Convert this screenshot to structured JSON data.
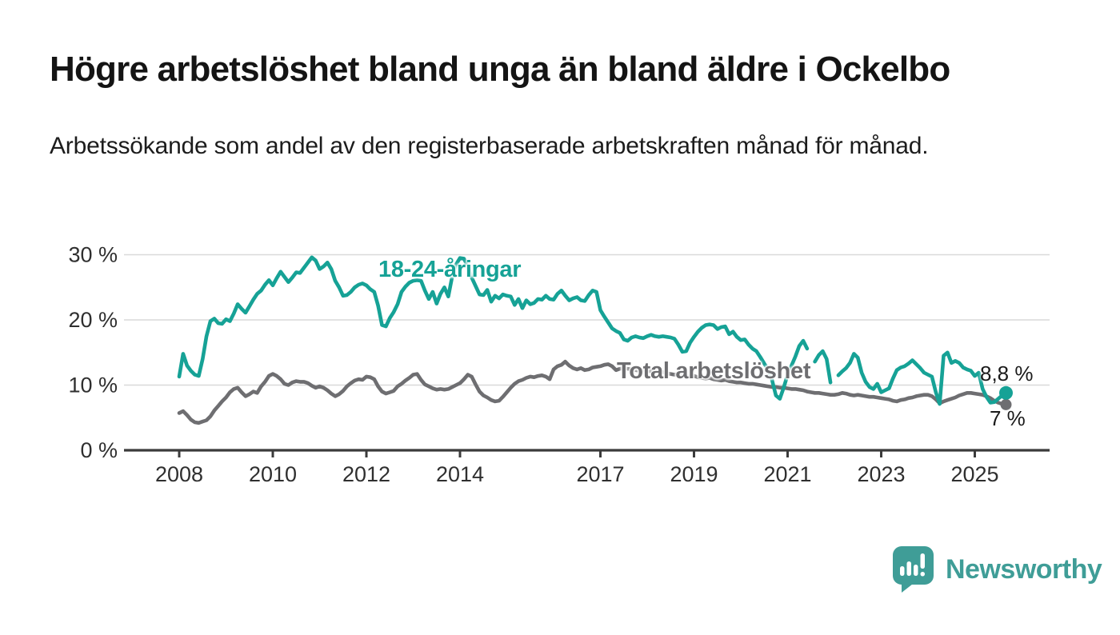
{
  "header": {
    "title": "Högre arbetslöshet bland unga än bland äldre i Ockelbo",
    "subtitle": "Arbetssökande som andel av den registerbaserade arbetskraften månad för månad."
  },
  "colors": {
    "young_line": "#16a296",
    "total_line": "#6e6e71",
    "grid": "#d9d9d9",
    "axis": "#3b3b3b",
    "axis_text": "#2f2f2f",
    "value_label_text": "#1a1a1a",
    "logo_teal": "#3f9d97",
    "title_text": "#141414"
  },
  "logo": {
    "text": "Newsworthy"
  },
  "chart_data": {
    "type": "line",
    "title": "Högre arbetslöshet bland unga än bland äldre i Ockelbo",
    "subtitle": "Arbetssökande som andel av den registerbaserade arbetskraften månad för månad.",
    "unit": "%",
    "x_start": "2008-01",
    "x_frequency": "monthly",
    "grid": "horizontal",
    "ylim": [
      0,
      32
    ],
    "x_ticks": [
      {
        "label": "2008",
        "year": 2008
      },
      {
        "label": "2010",
        "year": 2010
      },
      {
        "label": "2012",
        "year": 2012
      },
      {
        "label": "2014",
        "year": 2014
      },
      {
        "label": "2017",
        "year": 2017
      },
      {
        "label": "2019",
        "year": 2019
      },
      {
        "label": "2021",
        "year": 2021
      },
      {
        "label": "2023",
        "year": 2023
      },
      {
        "label": "2025",
        "year": 2025
      }
    ],
    "y_ticks": [
      {
        "label": "0 %",
        "value": 0
      },
      {
        "label": "10 %",
        "value": 10
      },
      {
        "label": "20 %",
        "value": 20
      },
      {
        "label": "30 %",
        "value": 30
      }
    ],
    "series": [
      {
        "name": "18-24-åringar",
        "color": "#16a296",
        "end_label": "8,8 %",
        "end_value": 8.8,
        "values": [
          11.3,
          14.8,
          13.0,
          12.2,
          11.6,
          11.4,
          14.0,
          17.5,
          19.8,
          20.2,
          19.5,
          19.4,
          20.1,
          19.8,
          21.0,
          22.4,
          21.7,
          21.1,
          22.1,
          23.1,
          24.0,
          24.5,
          25.4,
          26.1,
          25.3,
          26.4,
          27.4,
          26.6,
          25.8,
          26.5,
          27.3,
          27.2,
          28.0,
          28.8,
          29.6,
          29.1,
          27.8,
          28.2,
          28.8,
          27.8,
          26.0,
          25.0,
          23.7,
          23.8,
          24.3,
          25.0,
          25.4,
          25.6,
          25.3,
          24.7,
          24.3,
          22.2,
          19.2,
          19.0,
          20.3,
          21.2,
          22.4,
          24.3,
          25.1,
          25.7,
          26.0,
          26.1,
          26.0,
          24.5,
          23.2,
          24.3,
          22.5,
          24.0,
          25.0,
          23.6,
          26.7,
          28.5,
          29.5,
          29.4,
          28.2,
          26.5,
          25.2,
          23.9,
          23.8,
          24.6,
          22.8,
          23.7,
          23.3,
          23.9,
          23.7,
          23.6,
          22.3,
          23.2,
          21.8,
          23.0,
          22.4,
          22.6,
          23.2,
          23.1,
          23.7,
          23.2,
          23.1,
          24.0,
          24.5,
          23.7,
          23.0,
          23.3,
          23.5,
          23.0,
          22.9,
          23.8,
          24.5,
          24.3,
          21.5,
          20.5,
          19.6,
          18.7,
          18.3,
          18.0,
          17.0,
          16.8,
          17.3,
          17.5,
          17.3,
          17.2,
          17.5,
          17.7,
          17.5,
          17.4,
          17.5,
          17.4,
          17.3,
          17.1,
          16.2,
          15.1,
          15.2,
          16.5,
          17.4,
          18.2,
          18.8,
          19.2,
          19.3,
          19.2,
          18.6,
          18.9,
          19.0,
          17.8,
          18.2,
          17.4,
          16.9,
          17.0,
          16.2,
          15.6,
          15.2,
          14.3,
          13.3,
          12.4,
          10.8,
          8.4,
          7.9,
          9.6,
          11.6,
          13.0,
          14.4,
          16.0,
          16.8,
          15.6,
          null,
          13.6,
          14.6,
          15.2,
          14.0,
          10.4,
          null,
          11.5,
          12.1,
          12.6,
          13.4,
          14.8,
          14.2,
          11.9,
          10.5,
          9.7,
          9.4,
          10.2,
          8.9,
          9.2,
          9.5,
          11.0,
          12.3,
          12.7,
          12.9,
          13.3,
          13.8,
          13.2,
          12.6,
          11.9,
          11.6,
          11.3,
          8.9,
          7.1,
          14.5,
          15.0,
          13.4,
          13.7,
          13.4,
          12.7,
          12.4,
          12.2,
          11.4,
          11.9,
          9.4,
          8.2,
          7.3,
          7.4,
          7.9,
          8.4,
          8.8
        ]
      },
      {
        "name": "Total arbetslöshet",
        "color": "#6e6e71",
        "end_label": "7 %",
        "end_value": 7.0,
        "values": [
          5.7,
          6.0,
          5.4,
          4.7,
          4.3,
          4.2,
          4.4,
          4.6,
          5.2,
          6.1,
          6.8,
          7.5,
          8.1,
          8.9,
          9.4,
          9.6,
          8.9,
          8.3,
          8.6,
          9.0,
          8.8,
          9.8,
          10.5,
          11.4,
          11.7,
          11.4,
          10.9,
          10.2,
          10.0,
          10.4,
          10.6,
          10.5,
          10.5,
          10.3,
          9.9,
          9.6,
          9.8,
          9.6,
          9.2,
          8.7,
          8.3,
          8.6,
          9.1,
          9.8,
          10.3,
          10.7,
          10.9,
          10.8,
          11.3,
          11.2,
          10.9,
          9.8,
          9.0,
          8.7,
          8.9,
          9.1,
          9.8,
          10.2,
          10.7,
          11.1,
          11.6,
          11.7,
          10.8,
          10.1,
          9.8,
          9.5,
          9.3,
          9.4,
          9.3,
          9.4,
          9.7,
          10.0,
          10.3,
          10.9,
          11.6,
          11.3,
          10.1,
          9.0,
          8.4,
          8.1,
          7.7,
          7.5,
          7.6,
          8.2,
          8.9,
          9.6,
          10.2,
          10.6,
          10.8,
          11.1,
          11.3,
          11.2,
          11.4,
          11.5,
          11.3,
          10.9,
          12.4,
          12.9,
          13.1,
          13.6,
          13.0,
          12.6,
          12.4,
          12.6,
          12.3,
          12.4,
          12.7,
          12.8,
          12.9,
          13.1,
          13.2,
          12.9,
          12.3,
          12.5,
          12.6,
          12.5,
          12.4,
          12.3,
          12.2,
          12.3,
          12.2,
          12.1,
          12.0,
          11.9,
          12.0,
          11.8,
          11.7,
          11.6,
          11.7,
          11.5,
          11.4,
          11.3,
          11.4,
          11.2,
          11.1,
          11.0,
          11.1,
          10.9,
          10.8,
          10.7,
          10.8,
          10.6,
          10.5,
          10.4,
          10.4,
          10.3,
          10.2,
          10.2,
          10.1,
          10.0,
          9.9,
          9.8,
          9.7,
          9.7,
          9.6,
          9.6,
          9.5,
          9.4,
          9.4,
          9.3,
          9.2,
          9.0,
          8.9,
          8.8,
          8.8,
          8.7,
          8.6,
          8.5,
          8.5,
          8.6,
          8.8,
          8.7,
          8.5,
          8.4,
          8.5,
          8.4,
          8.3,
          8.2,
          8.2,
          8.1,
          8.0,
          7.9,
          7.8,
          7.6,
          7.5,
          7.7,
          7.8,
          8.0,
          8.1,
          8.3,
          8.4,
          8.5,
          8.5,
          8.3,
          7.8,
          7.2,
          7.5,
          7.7,
          7.9,
          8.1,
          8.4,
          8.6,
          8.8,
          8.8,
          8.7,
          8.6,
          8.5,
          8.3,
          8.0,
          7.6,
          7.3,
          7.1,
          7.0
        ]
      }
    ]
  }
}
